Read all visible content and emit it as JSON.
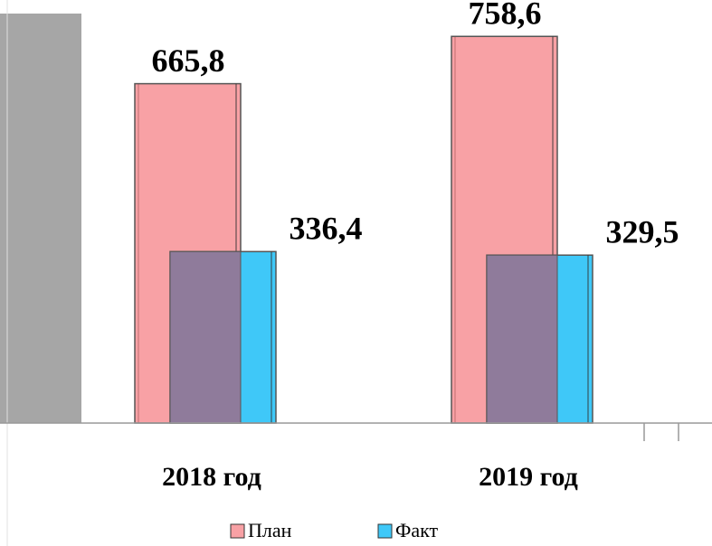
{
  "chart_data": {
    "type": "bar",
    "categories": [
      "2018 год",
      "2019 год"
    ],
    "series": [
      {
        "name": "План",
        "color": "#f8a1a5",
        "values": [
          665.8,
          758.6
        ],
        "value_labels": [
          "665,8",
          "758,6"
        ]
      },
      {
        "name": "Факт",
        "color": "#3fc8f8",
        "values": [
          336.4,
          329.5
        ],
        "value_labels": [
          "336,4",
          "329,5"
        ]
      }
    ],
    "overlap_color": "#8f7b9b",
    "ylim": [
      0,
      830
    ]
  }
}
